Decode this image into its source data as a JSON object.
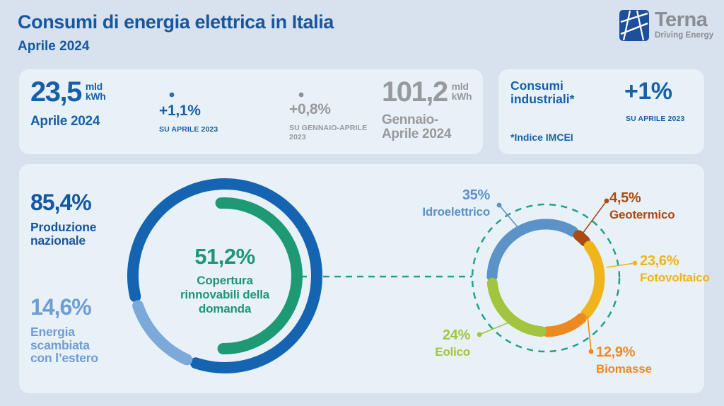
{
  "header": {
    "title": "Consumi di energia elettrica in Italia",
    "subtitle": "Aprile 2024"
  },
  "logo": {
    "name": "Terna",
    "tagline": "Driving Energy"
  },
  "colors": {
    "page_bg": "#d7e2ee",
    "card_bg": "#e9f1f8",
    "primary_blue": "#17579f",
    "value_blue": "#1760a8",
    "gray": "#97999c",
    "steel_blue": "#6d9dd3",
    "green": "#1f9678",
    "teal_dash": "#21a189"
  },
  "top_cards": {
    "monthly": {
      "value": "23,5",
      "unit_line1": "mld",
      "unit_line2": "kWh",
      "period": "Aprile 2024",
      "delta": "+1,1%",
      "delta_ref": "SU APRILE 2023"
    },
    "ytd": {
      "value": "101,2",
      "unit_line1": "mld",
      "unit_line2": "kWh",
      "period_line1": "Gennaio-",
      "period_line2": "Aprile 2024",
      "delta": "+0,8%",
      "delta_ref_line1": "SU GENNAIO-APRILE",
      "delta_ref_line2": "2023"
    },
    "industrial": {
      "title_line1": "Consumi",
      "title_line2": "industriali*",
      "delta": "+1%",
      "delta_ref": "SU APRILE 2023",
      "footnote": "*Indice IMCEI"
    }
  },
  "main_card": {
    "national": {
      "value": "85,4%",
      "label_line1": "Produzione",
      "label_line2": "nazionale"
    },
    "exchanged": {
      "value": "14,6%",
      "label_line1": "Energia",
      "label_line2": "scambiata",
      "label_line3": "con l’estero"
    },
    "renewables_center": {
      "value": "51,2%",
      "label_line1": "Copertura",
      "label_line2": "rinnovabili della",
      "label_line3": "domanda"
    }
  },
  "chart_data": [
    {
      "type": "donut",
      "center_value": "51,2%",
      "center_label": "Copertura rinnovabili della domanda",
      "rings": [
        {
          "name": "outer",
          "segments": [
            {
              "name": "Produzione nazionale",
              "value": 85.4,
              "color": "#1464b2"
            },
            {
              "name": "Energia scambiata con l'estero",
              "value": 14.6,
              "color": "#7ca9da"
            }
          ]
        },
        {
          "name": "inner",
          "segments": [
            {
              "name": "Copertura rinnovabili della domanda",
              "value": 51.2,
              "color": "#1d9a74"
            }
          ]
        }
      ]
    },
    {
      "type": "donut",
      "segments": [
        {
          "name": "Idroelettrico",
          "label": "35%",
          "value": 35,
          "color": "#5b92c7"
        },
        {
          "name": "Geotermico",
          "label": "4,5%",
          "value": 4.5,
          "color": "#aa4b13"
        },
        {
          "name": "Fotovoltaico",
          "label": "23,6%",
          "value": 23.6,
          "color": "#f0b51d"
        },
        {
          "name": "Biomasse",
          "label": "12,9%",
          "value": 12.9,
          "color": "#ec8a21"
        },
        {
          "name": "Eolico",
          "label": "24%",
          "value": 24,
          "color": "#a3c43e"
        }
      ]
    }
  ]
}
